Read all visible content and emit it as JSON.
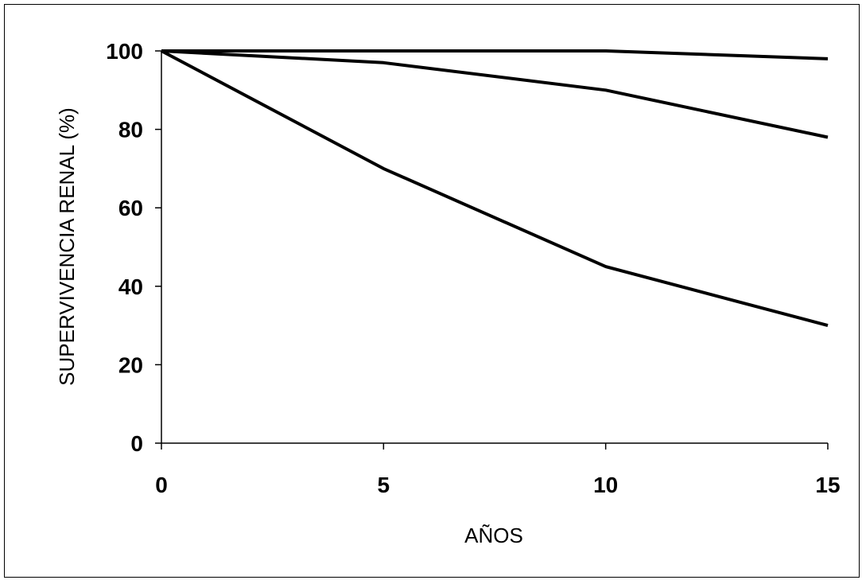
{
  "chart_data": {
    "type": "line",
    "title": "",
    "xlabel": "AÑOS",
    "ylabel": "SUPERVIVENCIA RENAL (%)",
    "xlim": [
      0,
      15
    ],
    "ylim": [
      0,
      100
    ],
    "x_ticks": [
      0,
      5,
      10,
      15
    ],
    "y_ticks": [
      0,
      20,
      40,
      60,
      80,
      100
    ],
    "grid": false,
    "legend": "none",
    "line_color": "#000000",
    "series": [
      {
        "x": [
          0,
          5,
          10,
          15
        ],
        "values": [
          100,
          100,
          100,
          98
        ]
      },
      {
        "x": [
          0,
          5,
          10,
          15
        ],
        "values": [
          100,
          97,
          90,
          78
        ]
      },
      {
        "x": [
          0,
          5,
          10,
          15
        ],
        "values": [
          100,
          70,
          45,
          30
        ]
      }
    ]
  }
}
